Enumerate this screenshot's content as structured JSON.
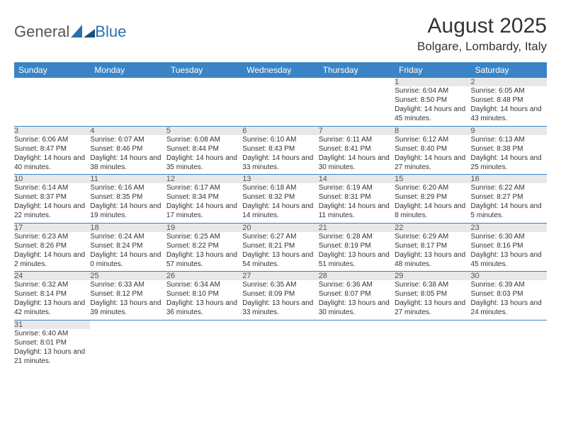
{
  "logo": {
    "text1": "General",
    "text2": "Blue"
  },
  "header": {
    "month_title": "August 2025",
    "location": "Bolgare, Lombardy, Italy"
  },
  "dayLabels": [
    "Sunday",
    "Monday",
    "Tuesday",
    "Wednesday",
    "Thursday",
    "Friday",
    "Saturday"
  ],
  "colors": {
    "header_bg": "#3a84c5",
    "header_text": "#ffffff",
    "daynum_bg": "#e8e8e8",
    "rule": "#3a84c5",
    "logo_blue": "#2c6fb0"
  },
  "weeks": [
    [
      null,
      null,
      null,
      null,
      null,
      {
        "n": "1",
        "sunrise": "Sunrise: 6:04 AM",
        "sunset": "Sunset: 8:50 PM",
        "daylight": "Daylight: 14 hours and 45 minutes."
      },
      {
        "n": "2",
        "sunrise": "Sunrise: 6:05 AM",
        "sunset": "Sunset: 8:48 PM",
        "daylight": "Daylight: 14 hours and 43 minutes."
      }
    ],
    [
      {
        "n": "3",
        "sunrise": "Sunrise: 6:06 AM",
        "sunset": "Sunset: 8:47 PM",
        "daylight": "Daylight: 14 hours and 40 minutes."
      },
      {
        "n": "4",
        "sunrise": "Sunrise: 6:07 AM",
        "sunset": "Sunset: 8:46 PM",
        "daylight": "Daylight: 14 hours and 38 minutes."
      },
      {
        "n": "5",
        "sunrise": "Sunrise: 6:08 AM",
        "sunset": "Sunset: 8:44 PM",
        "daylight": "Daylight: 14 hours and 35 minutes."
      },
      {
        "n": "6",
        "sunrise": "Sunrise: 6:10 AM",
        "sunset": "Sunset: 8:43 PM",
        "daylight": "Daylight: 14 hours and 33 minutes."
      },
      {
        "n": "7",
        "sunrise": "Sunrise: 6:11 AM",
        "sunset": "Sunset: 8:41 PM",
        "daylight": "Daylight: 14 hours and 30 minutes."
      },
      {
        "n": "8",
        "sunrise": "Sunrise: 6:12 AM",
        "sunset": "Sunset: 8:40 PM",
        "daylight": "Daylight: 14 hours and 27 minutes."
      },
      {
        "n": "9",
        "sunrise": "Sunrise: 6:13 AM",
        "sunset": "Sunset: 8:38 PM",
        "daylight": "Daylight: 14 hours and 25 minutes."
      }
    ],
    [
      {
        "n": "10",
        "sunrise": "Sunrise: 6:14 AM",
        "sunset": "Sunset: 8:37 PM",
        "daylight": "Daylight: 14 hours and 22 minutes."
      },
      {
        "n": "11",
        "sunrise": "Sunrise: 6:16 AM",
        "sunset": "Sunset: 8:35 PM",
        "daylight": "Daylight: 14 hours and 19 minutes."
      },
      {
        "n": "12",
        "sunrise": "Sunrise: 6:17 AM",
        "sunset": "Sunset: 8:34 PM",
        "daylight": "Daylight: 14 hours and 17 minutes."
      },
      {
        "n": "13",
        "sunrise": "Sunrise: 6:18 AM",
        "sunset": "Sunset: 8:32 PM",
        "daylight": "Daylight: 14 hours and 14 minutes."
      },
      {
        "n": "14",
        "sunrise": "Sunrise: 6:19 AM",
        "sunset": "Sunset: 8:31 PM",
        "daylight": "Daylight: 14 hours and 11 minutes."
      },
      {
        "n": "15",
        "sunrise": "Sunrise: 6:20 AM",
        "sunset": "Sunset: 8:29 PM",
        "daylight": "Daylight: 14 hours and 8 minutes."
      },
      {
        "n": "16",
        "sunrise": "Sunrise: 6:22 AM",
        "sunset": "Sunset: 8:27 PM",
        "daylight": "Daylight: 14 hours and 5 minutes."
      }
    ],
    [
      {
        "n": "17",
        "sunrise": "Sunrise: 6:23 AM",
        "sunset": "Sunset: 8:26 PM",
        "daylight": "Daylight: 14 hours and 2 minutes."
      },
      {
        "n": "18",
        "sunrise": "Sunrise: 6:24 AM",
        "sunset": "Sunset: 8:24 PM",
        "daylight": "Daylight: 14 hours and 0 minutes."
      },
      {
        "n": "19",
        "sunrise": "Sunrise: 6:25 AM",
        "sunset": "Sunset: 8:22 PM",
        "daylight": "Daylight: 13 hours and 57 minutes."
      },
      {
        "n": "20",
        "sunrise": "Sunrise: 6:27 AM",
        "sunset": "Sunset: 8:21 PM",
        "daylight": "Daylight: 13 hours and 54 minutes."
      },
      {
        "n": "21",
        "sunrise": "Sunrise: 6:28 AM",
        "sunset": "Sunset: 8:19 PM",
        "daylight": "Daylight: 13 hours and 51 minutes."
      },
      {
        "n": "22",
        "sunrise": "Sunrise: 6:29 AM",
        "sunset": "Sunset: 8:17 PM",
        "daylight": "Daylight: 13 hours and 48 minutes."
      },
      {
        "n": "23",
        "sunrise": "Sunrise: 6:30 AM",
        "sunset": "Sunset: 8:16 PM",
        "daylight": "Daylight: 13 hours and 45 minutes."
      }
    ],
    [
      {
        "n": "24",
        "sunrise": "Sunrise: 6:32 AM",
        "sunset": "Sunset: 8:14 PM",
        "daylight": "Daylight: 13 hours and 42 minutes."
      },
      {
        "n": "25",
        "sunrise": "Sunrise: 6:33 AM",
        "sunset": "Sunset: 8:12 PM",
        "daylight": "Daylight: 13 hours and 39 minutes."
      },
      {
        "n": "26",
        "sunrise": "Sunrise: 6:34 AM",
        "sunset": "Sunset: 8:10 PM",
        "daylight": "Daylight: 13 hours and 36 minutes."
      },
      {
        "n": "27",
        "sunrise": "Sunrise: 6:35 AM",
        "sunset": "Sunset: 8:09 PM",
        "daylight": "Daylight: 13 hours and 33 minutes."
      },
      {
        "n": "28",
        "sunrise": "Sunrise: 6:36 AM",
        "sunset": "Sunset: 8:07 PM",
        "daylight": "Daylight: 13 hours and 30 minutes."
      },
      {
        "n": "29",
        "sunrise": "Sunrise: 6:38 AM",
        "sunset": "Sunset: 8:05 PM",
        "daylight": "Daylight: 13 hours and 27 minutes."
      },
      {
        "n": "30",
        "sunrise": "Sunrise: 6:39 AM",
        "sunset": "Sunset: 8:03 PM",
        "daylight": "Daylight: 13 hours and 24 minutes."
      }
    ],
    [
      {
        "n": "31",
        "sunrise": "Sunrise: 6:40 AM",
        "sunset": "Sunset: 8:01 PM",
        "daylight": "Daylight: 13 hours and 21 minutes."
      },
      null,
      null,
      null,
      null,
      null,
      null
    ]
  ]
}
